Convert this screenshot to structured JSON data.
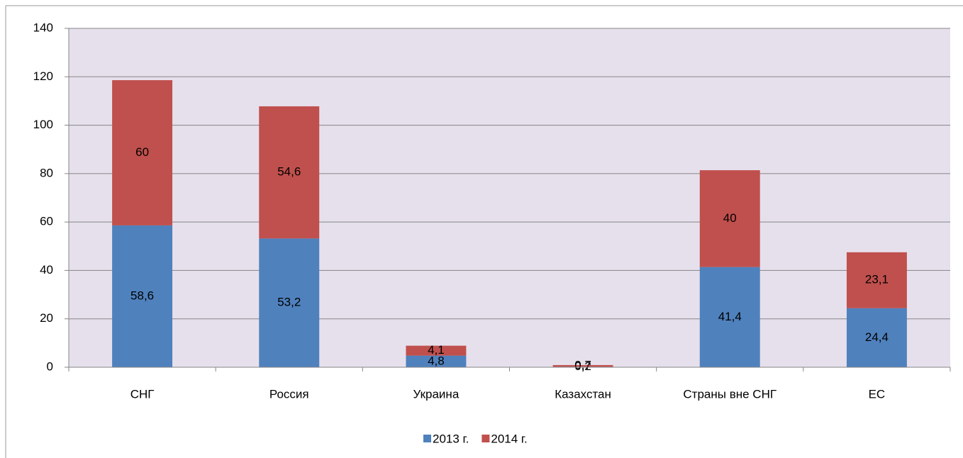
{
  "chart_data": {
    "type": "stacked_bar",
    "categories": [
      "СНГ",
      "Россия",
      "Украина",
      "Казахстан",
      "Страны вне СНГ",
      "ЕС"
    ],
    "series": [
      {
        "name": "2013 г.",
        "color": "#4f81bd",
        "values": [
          58.6,
          53.2,
          4.8,
          0.2,
          41.4,
          24.4
        ],
        "value_labels": [
          "58,6",
          "53,2",
          "4,8",
          "0,2",
          "41,4",
          "24,4"
        ]
      },
      {
        "name": "2014 г.",
        "color": "#c0504d",
        "values": [
          60,
          54.6,
          4.1,
          0.7,
          40,
          23.1
        ],
        "value_labels": [
          "60",
          "54,6",
          "4,1",
          "0,7",
          "40",
          "23,1"
        ]
      }
    ],
    "ylim": [
      0,
      140
    ],
    "yticks": [
      0,
      20,
      40,
      60,
      80,
      100,
      120,
      140
    ],
    "grid": true,
    "legend": "bottom"
  }
}
